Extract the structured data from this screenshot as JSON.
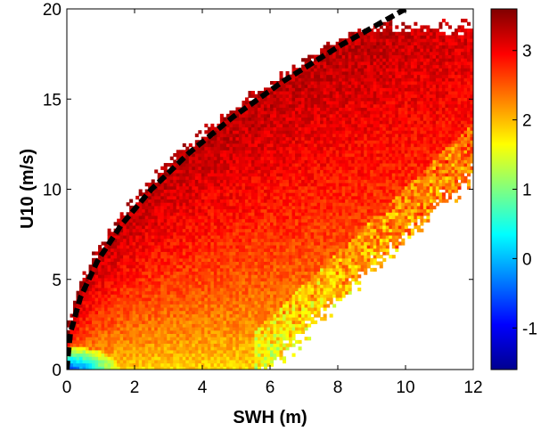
{
  "chart_data": {
    "type": "heatmap",
    "title": "",
    "xlabel": "SWH (m)",
    "ylabel": "U10 (m/s)",
    "xlim": [
      0,
      12
    ],
    "ylim": [
      0,
      20
    ],
    "x_ticks": [
      "0",
      "2",
      "4",
      "6",
      "8",
      "10",
      "12"
    ],
    "y_ticks": [
      "0",
      "5",
      "10",
      "15",
      "20"
    ],
    "colorbar": {
      "range": [
        -1.6,
        3.6
      ],
      "ticks": [
        "-1",
        "0",
        "1",
        "2",
        "3"
      ],
      "colormap": "jet"
    },
    "grid": false,
    "density_description_points": {
      "lower_left_low_value_region": {
        "swh_range": [
          0,
          2
        ],
        "u10_range": [
          0,
          1.5
        ],
        "value": -0.5
      },
      "core_value": 2.8,
      "upper_ridge_value": 3.3
    },
    "reference_curve": {
      "style": "dashed",
      "color": "#000000",
      "points": [
        {
          "swh": 0.0,
          "u10": 0.0
        },
        {
          "swh": 0.1,
          "u10": 2.0
        },
        {
          "swh": 0.4,
          "u10": 4.0
        },
        {
          "swh": 0.9,
          "u10": 6.0
        },
        {
          "swh": 1.6,
          "u10": 8.0
        },
        {
          "swh": 2.5,
          "u10": 10.0
        },
        {
          "swh": 3.6,
          "u10": 12.0
        },
        {
          "swh": 4.9,
          "u10": 14.0
        },
        {
          "swh": 6.4,
          "u10": 16.0
        },
        {
          "swh": 8.1,
          "u10": 18.0
        },
        {
          "swh": 10.0,
          "u10": 20.0
        }
      ]
    }
  }
}
